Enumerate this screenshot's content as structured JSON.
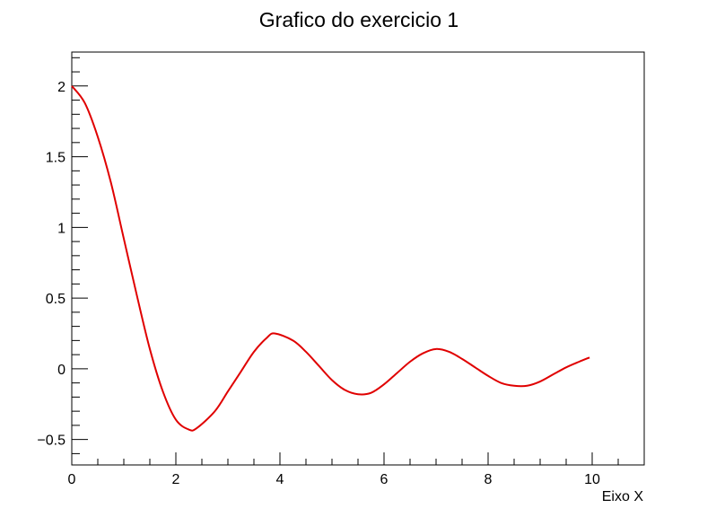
{
  "chart_data": {
    "type": "line",
    "title": "Grafico do exercicio 1",
    "xlabel": "Eixo X",
    "ylabel": "",
    "xlim": [
      0,
      11
    ],
    "ylim": [
      -0.68,
      2.24
    ],
    "grid": false,
    "x_major_ticks": [
      0,
      2,
      4,
      6,
      8,
      10
    ],
    "x_tick_labels": [
      "0",
      "2",
      "4",
      "6",
      "8",
      "10"
    ],
    "y_major_ticks": [
      -0.5,
      0,
      0.5,
      1,
      1.5,
      2
    ],
    "y_tick_labels": [
      "−0.5",
      "0",
      "0.5",
      "1",
      "1.5",
      "2"
    ],
    "series": [
      {
        "name": "",
        "color": "#e00000",
        "x": [
          0,
          0.25,
          0.5,
          0.75,
          1.0,
          1.25,
          1.5,
          1.75,
          2.0,
          2.25,
          2.4,
          2.75,
          3.0,
          3.25,
          3.5,
          3.75,
          3.9,
          4.25,
          4.5,
          4.75,
          5.0,
          5.25,
          5.5,
          5.75,
          6.0,
          6.25,
          6.5,
          6.75,
          7.0,
          7.25,
          7.5,
          7.75,
          8.0,
          8.25,
          8.5,
          8.75,
          9.0,
          9.25,
          9.5,
          9.75,
          9.95
        ],
        "y": [
          2.0,
          1.88,
          1.64,
          1.32,
          0.92,
          0.52,
          0.14,
          -0.16,
          -0.36,
          -0.43,
          -0.42,
          -0.3,
          -0.16,
          -0.02,
          0.12,
          0.22,
          0.25,
          0.2,
          0.12,
          0.02,
          -0.08,
          -0.15,
          -0.18,
          -0.17,
          -0.11,
          -0.03,
          0.05,
          0.11,
          0.14,
          0.12,
          0.07,
          0.01,
          -0.05,
          -0.1,
          -0.12,
          -0.12,
          -0.09,
          -0.04,
          0.01,
          0.05,
          0.08
        ]
      }
    ]
  }
}
